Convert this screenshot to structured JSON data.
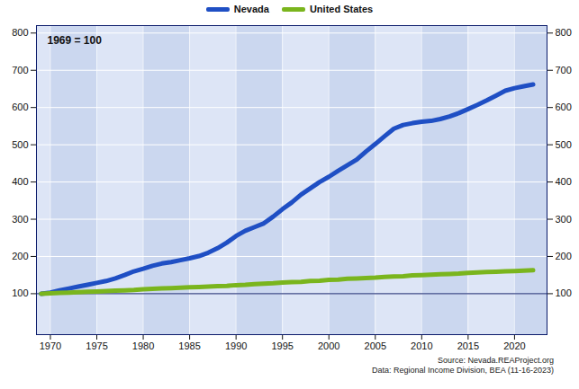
{
  "chart_data": {
    "type": "line",
    "annotation": "1969 = 100",
    "caption": [
      "Source: Nevada.REAProject.org",
      "Data: Regional Income Division, BEA (11-16-2023)"
    ],
    "legend": "top",
    "grid": true,
    "x": [
      1969,
      1970,
      1971,
      1972,
      1973,
      1974,
      1975,
      1976,
      1977,
      1978,
      1979,
      1980,
      1981,
      1982,
      1983,
      1984,
      1985,
      1986,
      1987,
      1988,
      1989,
      1990,
      1991,
      1992,
      1993,
      1994,
      1995,
      1996,
      1997,
      1998,
      1999,
      2000,
      2001,
      2002,
      2003,
      2004,
      2005,
      2006,
      2007,
      2008,
      2009,
      2010,
      2011,
      2012,
      2013,
      2014,
      2015,
      2016,
      2017,
      2018,
      2019,
      2020,
      2021,
      2022
    ],
    "series": [
      {
        "name": "Nevada",
        "color": "#1f4fc4",
        "values": [
          100,
          103,
          109,
          114,
          119,
          124,
          129,
          134,
          141,
          150,
          160,
          167,
          175,
          181,
          185,
          190,
          195,
          201,
          210,
          222,
          237,
          255,
          269,
          279,
          289,
          307,
          327,
          345,
          366,
          383,
          400,
          414,
          430,
          445,
          460,
          482,
          502,
          523,
          543,
          553,
          558,
          562,
          564,
          569,
          576,
          585,
          596,
          607,
          619,
          632,
          645,
          652,
          657,
          662
        ]
      },
      {
        "name": "United States",
        "color": "#7ab51d",
        "values": [
          100,
          101,
          102,
          103,
          104,
          105,
          106,
          107,
          108,
          109,
          110,
          112,
          113,
          114,
          115,
          116,
          117,
          118,
          119,
          120,
          121,
          123,
          124,
          126,
          127,
          128,
          130,
          131,
          132,
          134,
          135,
          137,
          138,
          140,
          141,
          142,
          143,
          145,
          146,
          147,
          149,
          150,
          151,
          152,
          153,
          154,
          156,
          157,
          158,
          159,
          160,
          161,
          162,
          163
        ]
      }
    ],
    "xlim": [
      1968.5,
      2023.5
    ],
    "xticks": [
      1970,
      1975,
      1980,
      1985,
      1990,
      1995,
      2000,
      2005,
      2010,
      2015,
      2020
    ],
    "ylim": [
      -10,
      820
    ],
    "yticks": [
      100,
      200,
      300,
      400,
      500,
      600,
      700,
      800
    ]
  }
}
